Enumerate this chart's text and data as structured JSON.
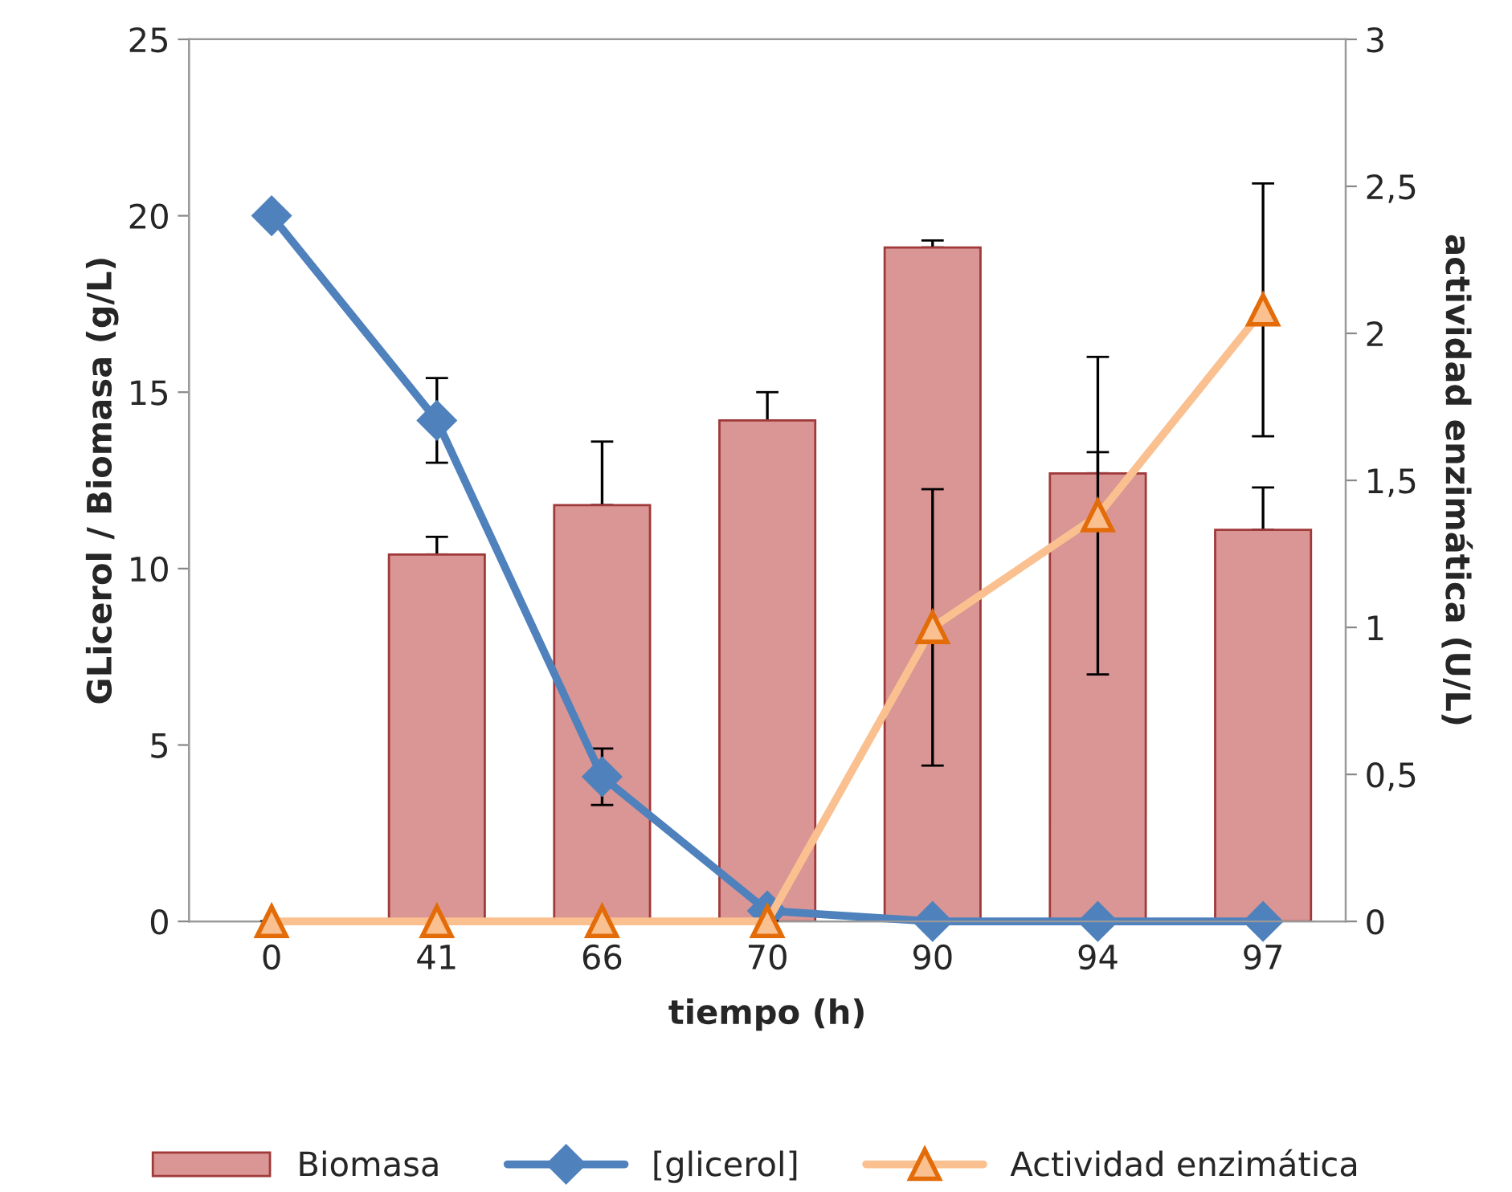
{
  "chart_data": {
    "type": "bar",
    "xlabel": "tiempo (h)",
    "ylabel": "GLicerol / Biomasa (g/L)",
    "y2label": "actividad enzimática (U/L)",
    "categories": [
      "0",
      "41",
      "66",
      "70",
      "90",
      "94",
      "97"
    ],
    "series": [
      {
        "name": "Biomasa",
        "color": "#d99694",
        "values": [
          null,
          10.4,
          11.8,
          14.2,
          19.1,
          12.7,
          11.1
        ],
        "errors": [
          null,
          [
            10.4,
            10.9
          ],
          [
            11.8,
            13.6
          ],
          [
            14.2,
            15.0
          ],
          [
            19.1,
            19.3
          ],
          [
            12.7,
            13.3
          ],
          [
            11.1,
            12.3
          ]
        ]
      },
      {
        "name": "[glicerol]",
        "type": "line",
        "color": "#4f81bd",
        "marker": "diamond",
        "values": [
          20,
          14.2,
          4.1,
          0.3,
          0,
          0,
          0
        ],
        "errors": [
          null,
          1.2,
          0.8,
          null,
          null,
          null,
          null
        ]
      },
      {
        "name": "Actividad enzimática",
        "type": "line",
        "axis": "y2",
        "color": "#fac090",
        "marker": "triangle",
        "values": [
          0,
          0,
          0,
          0,
          1.0,
          1.38,
          2.08
        ],
        "errors": [
          null,
          null,
          null,
          null,
          0.47,
          0.54,
          0.43
        ]
      }
    ],
    "ylim": [
      0,
      25
    ],
    "yticks": [
      0,
      5,
      10,
      15,
      20,
      25
    ],
    "y2lim": [
      0,
      3
    ],
    "y2ticks": [
      0,
      {
        "value": 0.5,
        "label": "0,5"
      },
      1,
      {
        "value": 1.5,
        "label": "1,5"
      },
      2,
      {
        "value": 2.5,
        "label": "2,5"
      },
      3
    ],
    "grid": false,
    "legend": "bottom"
  }
}
